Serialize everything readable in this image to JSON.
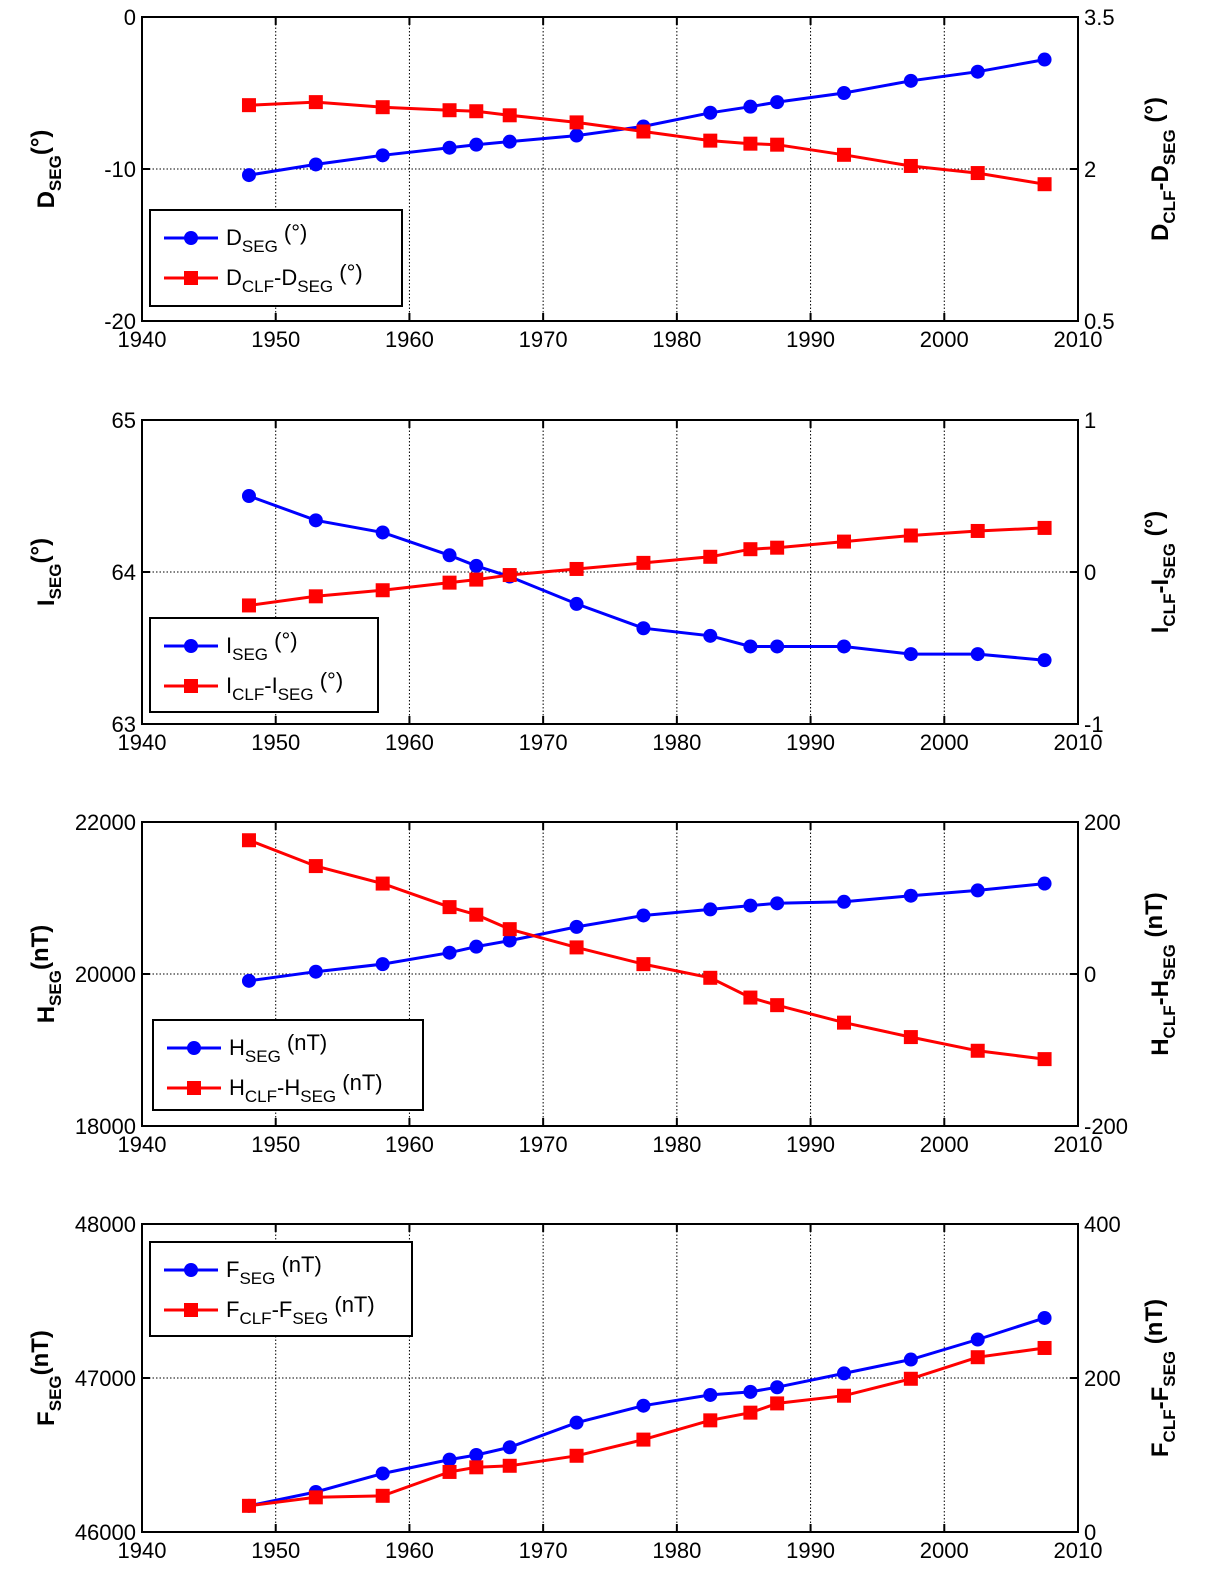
{
  "colors": {
    "left_series": "#0000ff",
    "right_series": "#ff0000",
    "axes": "#000000",
    "grid": "#000000"
  },
  "chart_data": [
    {
      "type": "line",
      "x": [
        1948,
        1953,
        1958,
        1963,
        1965,
        1967.5,
        1972.5,
        1977.5,
        1982.5,
        1985.5,
        1987.5,
        1992.5,
        1997.5,
        2002.5,
        2007.5
      ],
      "xlim": [
        1940,
        2010
      ],
      "xticks": [
        1940,
        1950,
        1960,
        1970,
        1980,
        1990,
        2000,
        2010
      ],
      "grid": true,
      "legend_position": "lower-left",
      "left_axis": {
        "label_main": "D",
        "label_sub": "SEG",
        "label_tail": "(°)",
        "ylim": [
          -20,
          0
        ],
        "ticks": [
          -20,
          -10,
          0
        ]
      },
      "right_axis": {
        "label_main": "D",
        "label_sub": "CLF",
        "label_mid": "-D",
        "label_sub2": "SEG",
        "label_tail": " (°)",
        "ylim": [
          0.5,
          3.5
        ],
        "ticks": [
          0.5,
          2,
          3.5
        ]
      },
      "series": [
        {
          "axis": "left",
          "marker": "circle",
          "legend": {
            "main": "D",
            "sub": "SEG",
            "tail": " (°)"
          },
          "values": [
            -10.4,
            -9.7,
            -9.1,
            -8.6,
            -8.4,
            -8.2,
            -7.8,
            -7.2,
            -6.3,
            -5.9,
            -5.6,
            -5.0,
            -4.2,
            -3.6,
            -2.8
          ]
        },
        {
          "axis": "right",
          "marker": "square",
          "legend": {
            "main": "D",
            "sub": "CLF",
            "mid": "-D",
            "sub2": "SEG",
            "tail": " (°)"
          },
          "values": [
            2.63,
            2.66,
            2.61,
            2.58,
            2.57,
            2.53,
            2.46,
            2.37,
            2.28,
            2.25,
            2.24,
            2.14,
            2.03,
            1.96,
            1.85
          ]
        }
      ]
    },
    {
      "type": "line",
      "x": [
        1948,
        1953,
        1958,
        1963,
        1965,
        1967.5,
        1972.5,
        1977.5,
        1982.5,
        1985.5,
        1987.5,
        1992.5,
        1997.5,
        2002.5,
        2007.5
      ],
      "xlim": [
        1940,
        2010
      ],
      "xticks": [
        1940,
        1950,
        1960,
        1970,
        1980,
        1990,
        2000,
        2010
      ],
      "grid": true,
      "legend_position": "lower-left",
      "left_axis": {
        "label_main": "I",
        "label_sub": "SEG",
        "label_tail": "(°)",
        "ylim": [
          63,
          65
        ],
        "ticks": [
          63,
          64,
          65
        ]
      },
      "right_axis": {
        "label_main": "I",
        "label_sub": "CLF",
        "label_mid": "-I",
        "label_sub2": "SEG",
        "label_tail": " (°)",
        "ylim": [
          -1,
          1
        ],
        "ticks": [
          -1,
          0,
          1
        ]
      },
      "series": [
        {
          "axis": "left",
          "marker": "circle",
          "legend": {
            "main": "I",
            "sub": "SEG",
            "tail": " (°)"
          },
          "values": [
            64.5,
            64.34,
            64.26,
            64.11,
            64.04,
            63.97,
            63.79,
            63.63,
            63.58,
            63.51,
            63.51,
            63.51,
            63.46,
            63.46,
            63.42
          ]
        },
        {
          "axis": "right",
          "marker": "square",
          "legend": {
            "main": "I",
            "sub": "CLF",
            "mid": "-I",
            "sub2": "SEG",
            "tail": " (°)"
          },
          "values": [
            -0.22,
            -0.16,
            -0.12,
            -0.07,
            -0.05,
            -0.02,
            0.02,
            0.06,
            0.1,
            0.15,
            0.16,
            0.2,
            0.24,
            0.27,
            0.29
          ]
        }
      ]
    },
    {
      "type": "line",
      "x": [
        1948,
        1953,
        1958,
        1963,
        1965,
        1967.5,
        1972.5,
        1977.5,
        1982.5,
        1985.5,
        1987.5,
        1992.5,
        1997.5,
        2002.5,
        2007.5
      ],
      "xlim": [
        1940,
        2010
      ],
      "xticks": [
        1940,
        1950,
        1960,
        1970,
        1980,
        1990,
        2000,
        2010
      ],
      "grid": true,
      "legend_position": "lower-left",
      "left_axis": {
        "label_main": "H",
        "label_sub": "SEG",
        "label_tail": "(nT)",
        "ylim": [
          18000,
          22000
        ],
        "ticks": [
          18000,
          20000,
          22000
        ]
      },
      "right_axis": {
        "label_main": "H",
        "label_sub": "CLF",
        "label_mid": "-H",
        "label_sub2": "SEG",
        "label_tail": " (nT)",
        "ylim": [
          -200,
          200
        ],
        "ticks": [
          -200,
          0,
          200
        ]
      },
      "series": [
        {
          "axis": "left",
          "marker": "circle",
          "legend": {
            "main": "H",
            "sub": "SEG",
            "tail": " (nT)"
          },
          "values": [
            19910,
            20030,
            20130,
            20280,
            20360,
            20440,
            20620,
            20770,
            20850,
            20900,
            20930,
            20950,
            21030,
            21100,
            21190
          ]
        },
        {
          "axis": "right",
          "marker": "square",
          "legend": {
            "main": "H",
            "sub": "CLF",
            "mid": "-H",
            "sub2": "SEG",
            "tail": " (nT)"
          },
          "values": [
            176,
            142,
            119,
            88,
            78,
            59,
            35,
            13,
            -5,
            -31,
            -41,
            -64,
            -83,
            -101,
            -112
          ]
        }
      ]
    },
    {
      "type": "line",
      "x": [
        1948,
        1953,
        1958,
        1963,
        1965,
        1967.5,
        1972.5,
        1977.5,
        1982.5,
        1985.5,
        1987.5,
        1992.5,
        1997.5,
        2002.5,
        2007.5
      ],
      "xlim": [
        1940,
        2010
      ],
      "xticks": [
        1940,
        1950,
        1960,
        1970,
        1980,
        1990,
        2000,
        2010
      ],
      "grid": true,
      "legend_position": "upper-left",
      "left_axis": {
        "label_main": "F",
        "label_sub": "SEG",
        "label_tail": "(nT)",
        "ylim": [
          46000,
          48000
        ],
        "ticks": [
          46000,
          47000,
          48000
        ]
      },
      "right_axis": {
        "label_main": "F",
        "label_sub": "CLF",
        "label_mid": "-F",
        "label_sub2": "SEG",
        "label_tail": " (nT)",
        "ylim": [
          0,
          400
        ],
        "ticks": [
          0,
          200,
          400
        ]
      },
      "series": [
        {
          "axis": "left",
          "marker": "circle",
          "legend": {
            "main": "F",
            "sub": "SEG",
            "tail": " (nT)"
          },
          "values": [
            46170,
            46260,
            46380,
            46470,
            46500,
            46550,
            46710,
            46820,
            46890,
            46910,
            46940,
            47030,
            47120,
            47250,
            47390
          ]
        },
        {
          "axis": "right",
          "marker": "square",
          "legend": {
            "main": "F",
            "sub": "CLF",
            "mid": "-F",
            "sub2": "SEG",
            "tail": " (nT)"
          },
          "values": [
            34,
            45,
            47,
            78,
            84,
            86,
            99,
            120,
            145,
            155,
            167,
            177,
            199,
            227,
            239
          ]
        }
      ]
    }
  ]
}
